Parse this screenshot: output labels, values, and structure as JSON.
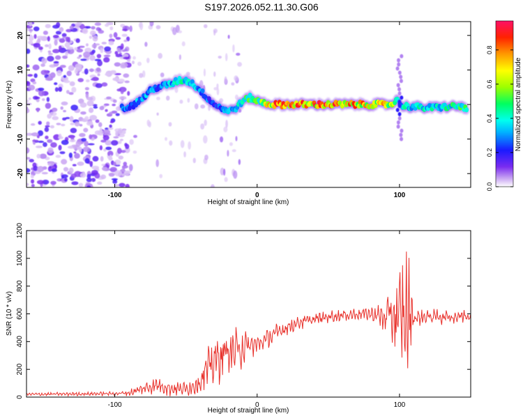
{
  "title": "S197.2026.052.11.30.G06",
  "chart_data": [
    {
      "type": "heatmap",
      "xlabel": "Height of straight line (km)",
      "ylabel": "Frequency (Hz)",
      "xlim": [
        -162,
        150
      ],
      "ylim": [
        -24,
        24
      ],
      "xticks": [
        -100,
        0,
        100
      ],
      "xtick_labels": [
        "-100",
        "0",
        "100"
      ],
      "yticks": [
        -20,
        -10,
        0,
        10,
        20
      ],
      "ytick_labels": [
        "-20",
        "-10",
        "0",
        "10",
        "20"
      ],
      "colorbar": {
        "label": "Normalized spectral amplitude",
        "range": [
          0,
          0.97
        ],
        "ticks": [
          0,
          0.2,
          0.4,
          0.6,
          0.8
        ],
        "tick_labels": [
          "0.0",
          "0.2",
          "0.4",
          "0.6",
          "0.8"
        ]
      },
      "ridge": {
        "x": [
          -95,
          -88,
          -80,
          -75,
          -70,
          -65,
          -60,
          -55,
          -50,
          -45,
          -40,
          -35,
          -30,
          -25,
          -20,
          -15,
          -10,
          -5,
          0,
          5,
          10,
          20,
          40,
          60,
          80,
          95,
          98,
          100,
          105,
          120,
          140,
          148
        ],
        "freq": [
          -1,
          -0.5,
          2,
          4,
          5,
          5.5,
          6,
          7,
          7,
          6,
          4,
          2,
          0,
          -1,
          -2,
          -1,
          1,
          2,
          1,
          0.5,
          0,
          0,
          0,
          0,
          0,
          0,
          2,
          0,
          -0.5,
          -1,
          -0.5,
          -1
        ],
        "amplitude": [
          0.3,
          0.35,
          0.35,
          0.35,
          0.3,
          0.35,
          0.4,
          0.45,
          0.45,
          0.4,
          0.35,
          0.3,
          0.25,
          0.3,
          0.35,
          0.4,
          0.5,
          0.55,
          0.55,
          0.65,
          0.85,
          0.9,
          0.9,
          0.85,
          0.8,
          0.75,
          0.4,
          0.35,
          0.45,
          0.45,
          0.5,
          0.55
        ]
      }
    },
    {
      "type": "line",
      "xlabel": "Height of straight line (km)",
      "ylabel": "SNR (10 * v/v)",
      "xlim": [
        -162,
        150
      ],
      "ylim": [
        0,
        1200
      ],
      "xticks": [
        -100,
        0,
        100
      ],
      "xtick_labels": [
        "-100",
        "0",
        "100"
      ],
      "yticks": [
        0,
        200,
        400,
        600,
        800,
        1000,
        1200
      ],
      "ytick_labels": [
        "0",
        "200",
        "400",
        "600",
        "800",
        "1000",
        "1200"
      ],
      "series": [
        {
          "name": "SNR",
          "color": "#e8302a",
          "envelope_x": [
            -162,
            -100,
            -90,
            -80,
            -70,
            -60,
            -50,
            -45,
            -40,
            -35,
            -30,
            -25,
            -20,
            -15,
            -10,
            -5,
            0,
            10,
            20,
            30,
            40,
            50,
            60,
            70,
            80,
            85,
            90,
            95,
            100,
            103,
            105,
            108,
            110,
            120,
            130,
            140,
            150
          ],
          "envelope_y": [
            20,
            25,
            30,
            60,
            90,
            60,
            60,
            80,
            120,
            200,
            260,
            300,
            330,
            330,
            360,
            370,
            380,
            440,
            500,
            540,
            560,
            580,
            590,
            600,
            600,
            590,
            570,
            590,
            560,
            570,
            600,
            590,
            570,
            580,
            580,
            580,
            590
          ],
          "noise_amp": [
            10,
            12,
            20,
            40,
            50,
            50,
            40,
            60,
            100,
            120,
            150,
            160,
            140,
            150,
            120,
            80,
            60,
            60,
            50,
            45,
            40,
            40,
            40,
            40,
            40,
            60,
            120,
            200,
            300,
            450,
            500,
            200,
            50,
            50,
            50,
            50,
            50
          ]
        }
      ]
    }
  ]
}
